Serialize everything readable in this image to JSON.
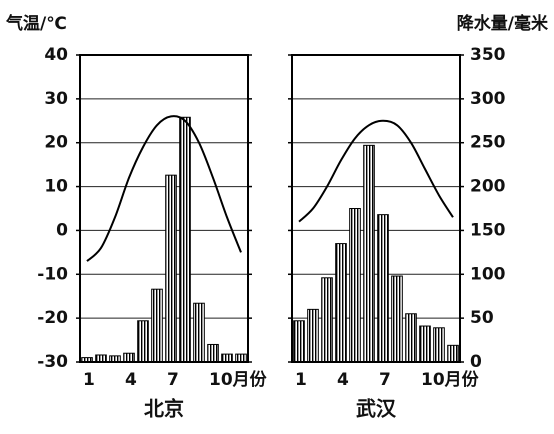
{
  "chart_data": [
    {
      "type": "climate",
      "title": "北京",
      "y_label": "气温/℃",
      "categories": [
        "1",
        null,
        null,
        "4",
        null,
        null,
        "7",
        null,
        null,
        "10月份",
        null,
        null
      ],
      "series": [
        {
          "name": "降水量",
          "kind": "bar",
          "axis": "y2",
          "color": "#000",
          "values": [
            5,
            8,
            7,
            10,
            47,
            83,
            213,
            279,
            67,
            20,
            9,
            9
          ]
        },
        {
          "name": "气温",
          "kind": "line",
          "color": "#000",
          "values": [
            -7,
            -4,
            3,
            12,
            19,
            24,
            26,
            25,
            20,
            12,
            3,
            -5
          ]
        }
      ],
      "ylim": [
        -30,
        40
      ],
      "yticks": [
        -30,
        -20,
        -10,
        0,
        10,
        20,
        30,
        40
      ],
      "y2lim": [
        0,
        350
      ],
      "y2ticks": [
        0,
        50,
        100,
        150,
        200,
        250,
        300,
        350
      ],
      "grid": true
    },
    {
      "type": "climate",
      "title": "武汉",
      "y2_label": "降水量/毫米",
      "categories": [
        "1",
        null,
        null,
        "4",
        null,
        null,
        "7",
        null,
        null,
        "10月份",
        null,
        null
      ],
      "series": [
        {
          "name": "降水量",
          "kind": "bar",
          "axis": "y2",
          "color": "#000",
          "values": [
            47,
            60,
            96,
            135,
            175,
            247,
            168,
            98,
            55,
            41,
            39,
            19
          ]
        },
        {
          "name": "气温",
          "kind": "line",
          "color": "#000",
          "values": [
            2,
            5,
            10,
            16,
            21,
            24,
            25,
            24,
            20,
            14,
            8,
            3
          ]
        }
      ],
      "ylim": [
        -30,
        40
      ],
      "yticks": [
        -30,
        -20,
        -10,
        0,
        10,
        20,
        30,
        40
      ],
      "y2lim": [
        0,
        350
      ],
      "y2ticks": [
        0,
        50,
        100,
        150,
        200,
        250,
        300,
        350
      ],
      "grid": true
    }
  ]
}
